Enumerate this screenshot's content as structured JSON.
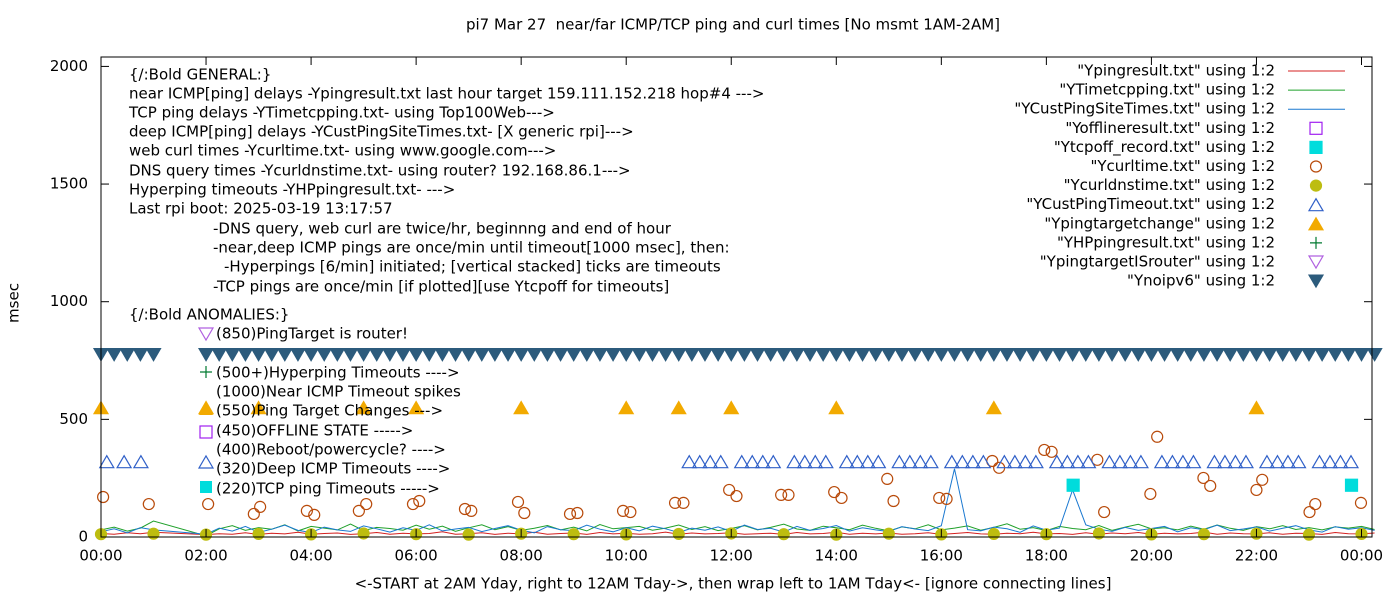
{
  "chart_data": {
    "type": "line",
    "title": "pi7 Mar 27  near/far ICMP/TCP ping and curl times [No msmt 1AM-2AM]",
    "x_label": "<-START at 2AM Yday, right to 12AM Tday->, then wrap left to 1AM Tday<- [ignore connecting lines]",
    "y_label": "msec",
    "xlim": [
      0,
      24.2
    ],
    "ylim": [
      0,
      2040
    ],
    "xticks": [
      {
        "value": 0,
        "label": "00:00"
      },
      {
        "value": 2,
        "label": "02:00"
      },
      {
        "value": 4,
        "label": "04:00"
      },
      {
        "value": 6,
        "label": "06:00"
      },
      {
        "value": 8,
        "label": "08:00"
      },
      {
        "value": 10,
        "label": "10:00"
      },
      {
        "value": 12,
        "label": "12:00"
      },
      {
        "value": 14,
        "label": "14:00"
      },
      {
        "value": 16,
        "label": "16:00"
      },
      {
        "value": 18,
        "label": "18:00"
      },
      {
        "value": 20,
        "label": "20:00"
      },
      {
        "value": 22,
        "label": "22:00"
      },
      {
        "value": 24,
        "label": "00:00"
      }
    ],
    "yticks": [
      0,
      500,
      1000,
      1500,
      2000
    ],
    "grid": false,
    "legend": "top-right",
    "notes": [
      "{/:Bold GENERAL:}",
      "near ICMP[ping] delays -Ypingresult.txt last hour target 159.111.152.218 hop#4 --->",
      "TCP ping delays -YTimetcpping.txt- using Top100Web--->",
      "deep ICMP[ping] delays -YCustPingSiteTimes.txt- [X generic rpi]--->",
      "web curl times -Ycurltime.txt- using www.google.com--->",
      "DNS query times -Ycurldnstime.txt- using router? 192.168.86.1--->",
      "Hyperping timeouts -YHPpingresult.txt- --->",
      "Last rpi boot: 2025-03-19 13:17:57",
      "-DNS query, web curl are twice/hr, beginnng and end of hour",
      "-near,deep ICMP pings are once/min until timeout[1000 msec], then:",
      "-Hyperpings [6/min] initiated; [vertical stacked] ticks are timeouts",
      "-TCP pings are once/min [if plotted][use Ytcpoff for timeouts]",
      "{/:Bold ANOMALIES:}",
      "(850)PingTarget is router!",
      "(500+)Hyperping Timeouts ---->",
      "(1000)Near ICMP Timeout spikes",
      "(550)Ping Target Changes --->",
      "(450)OFFLINE STATE ----->",
      "(400)Reboot/powercycle? ---->",
      "(320)Deep ICMP Timeouts ---->",
      "(220)TCP ping Timeouts ----->"
    ],
    "x": [
      0,
      0.25,
      0.5,
      0.75,
      1,
      2,
      2.25,
      2.5,
      2.75,
      3,
      3.25,
      3.5,
      3.75,
      4,
      4.25,
      4.5,
      4.75,
      5,
      5.25,
      5.5,
      5.75,
      6,
      6.25,
      6.5,
      6.75,
      7,
      7.25,
      7.5,
      7.75,
      8,
      8.25,
      8.5,
      8.75,
      9,
      9.25,
      9.5,
      9.75,
      10,
      10.25,
      10.5,
      10.75,
      11,
      11.25,
      11.5,
      11.75,
      12,
      12.25,
      12.5,
      12.75,
      13,
      13.25,
      13.5,
      13.75,
      14,
      14.25,
      14.5,
      14.75,
      15,
      15.25,
      15.5,
      15.75,
      16,
      16.25,
      16.5,
      16.75,
      17,
      17.25,
      17.5,
      17.75,
      18,
      18.25,
      18.5,
      18.75,
      19,
      19.25,
      19.5,
      19.75,
      20,
      20.25,
      20.5,
      20.75,
      21,
      21.25,
      21.5,
      21.75,
      22,
      22.25,
      22.5,
      22.75,
      23,
      23.25,
      23.5,
      23.75,
      24,
      24.25
    ],
    "series": [
      {
        "name": "\"Ypingresult.txt\" using 1:2",
        "color": "#d42020",
        "style": "line",
        "values": [
          15,
          12,
          18,
          14,
          20,
          10,
          14,
          12,
          18,
          11,
          16,
          13,
          20,
          12,
          15,
          17,
          11,
          14,
          19,
          12,
          16,
          13,
          15,
          22,
          12,
          14,
          18,
          11,
          16,
          13,
          20,
          12,
          15,
          17,
          11,
          19,
          13,
          16,
          12,
          14,
          21,
          12,
          17,
          13,
          15,
          18,
          12,
          14,
          16,
          11,
          19,
          13,
          15,
          20,
          12,
          16,
          13,
          17,
          12,
          14,
          18,
          11,
          15,
          19,
          13,
          12,
          16,
          14,
          20,
          13,
          15,
          11,
          18,
          12,
          17,
          14,
          19,
          12,
          16,
          13,
          15,
          21,
          12,
          17,
          14,
          13,
          18,
          12,
          16,
          15,
          11,
          19,
          14,
          13,
          17
        ]
      },
      {
        "name": "\"YTimetcpping.txt\" using 1:2",
        "color": "#1fa02a",
        "style": "line",
        "values": [
          30,
          42,
          25,
          38,
          68,
          5,
          35,
          48,
          28,
          40,
          33,
          52,
          26,
          45,
          38,
          30,
          55,
          27,
          41,
          36,
          29,
          50,
          33,
          46,
          24,
          39,
          52,
          31,
          44,
          28,
          37,
          49,
          30,
          42,
          26,
          53,
          35,
          40,
          45,
          29,
          38,
          51,
          32,
          44,
          27,
          36,
          48,
          30,
          41,
          55,
          34,
          28,
          46,
          39,
          31,
          50,
          37,
          26,
          43,
          35,
          52,
          30,
          38,
          47,
          29,
          41,
          56,
          33,
          40,
          27,
          45,
          36,
          31,
          49,
          28,
          42,
          54,
          35,
          39,
          30,
          46,
          33,
          51,
          37,
          28,
          44,
          35,
          48,
          32,
          40,
          30,
          43,
          38,
          45,
          32
        ]
      },
      {
        "name": "\"YCustPingSiteTimes.txt\" using 1:2",
        "color": "#1a78d0",
        "style": "line",
        "values": [
          22,
          35,
          18,
          40,
          30,
          12,
          38,
          25,
          45,
          20,
          33,
          50,
          28,
          19,
          42,
          30,
          24,
          47,
          35,
          21,
          39,
          28,
          52,
          26,
          34,
          41,
          23,
          36,
          48,
          29,
          18,
          44,
          31,
          27,
          50,
          33,
          22,
          40,
          26,
          46,
          35,
          19,
          38,
          29,
          43,
          24,
          51,
          32,
          37,
          21,
          45,
          28,
          36,
          49,
          25,
          39,
          30,
          23,
          44,
          34,
          27,
          48,
          290,
          31,
          26,
          42,
          35,
          20,
          47,
          29,
          38,
          200,
          52,
          33,
          24,
          41,
          28,
          36,
          45,
          22,
          39,
          31,
          50,
          27,
          34,
          43,
          25,
          37,
          48,
          30,
          21,
          44,
          33,
          39,
          28
        ]
      },
      {
        "name": "\"Yofflineresult.txt\" using 1:2",
        "color": "#a020f0",
        "style": "square-open",
        "x": [],
        "values": []
      },
      {
        "name": "\"Ytcpoff_record.txt\" using 1:2",
        "color": "#00dcdc",
        "style": "square",
        "x": [
          18.51,
          23.81
        ],
        "values": [
          220,
          220
        ]
      },
      {
        "name": "\"Ycurltime.txt\" using 1:2",
        "color": "#b84a0a",
        "style": "circle-open",
        "x": [
          0.04,
          0.91,
          2.04,
          2.91,
          3.03,
          3.92,
          4.06,
          4.91,
          5.05,
          5.94,
          6.06,
          6.93,
          7.05,
          7.94,
          8.06,
          8.93,
          9.07,
          9.94,
          10.08,
          10.93,
          11.09,
          11.96,
          12.1,
          12.95,
          13.09,
          13.96,
          14.1,
          14.97,
          15.09,
          15.96,
          16.1,
          16.97,
          17.1,
          17.96,
          18.1,
          18.97,
          19.1,
          19.98,
          20.11,
          20.99,
          21.12,
          22.0,
          22.11,
          23.01,
          23.12,
          23.99
        ],
        "values": [
          170,
          140,
          140,
          98,
          128,
          111,
          94,
          111,
          140,
          140,
          153,
          119,
          111,
          149,
          102,
          98,
          102,
          111,
          106,
          145,
          145,
          200,
          174,
          179,
          179,
          191,
          166,
          247,
          153,
          166,
          162,
          323,
          294,
          370,
          362,
          328,
          106,
          183,
          426,
          251,
          217,
          200,
          243,
          106,
          140,
          145
        ]
      },
      {
        "name": "\"Ycurldnstime.txt\" using 1:2",
        "color": "#bdbd10",
        "style": "circle",
        "x": [
          0,
          1,
          2,
          3,
          4,
          5,
          6,
          7,
          8,
          9,
          10,
          11,
          12,
          13,
          14,
          15,
          16,
          17,
          18,
          19,
          20,
          21,
          22,
          23,
          24
        ],
        "values": [
          12,
          14,
          10,
          13,
          11,
          15,
          12,
          10,
          14,
          12,
          11,
          13,
          15,
          12,
          10,
          14,
          11,
          13,
          12,
          15,
          11,
          12,
          14,
          10,
          13
        ]
      },
      {
        "name": "\"YCustPingTimeout.txt\" using 1:2",
        "color": "#3060c8",
        "style": "triangle-up-open",
        "x": [
          0.11,
          0.44,
          0.76,
          11.2,
          11.4,
          11.6,
          11.8,
          12.2,
          12.4,
          12.6,
          12.8,
          13.2,
          13.4,
          13.6,
          13.8,
          14.2,
          14.4,
          14.6,
          14.8,
          15.2,
          15.4,
          15.6,
          15.8,
          16.2,
          16.4,
          16.6,
          16.8,
          17.2,
          17.4,
          17.6,
          17.8,
          18.2,
          18.4,
          18.6,
          18.8,
          19.2,
          19.4,
          19.6,
          19.8,
          20.2,
          20.4,
          20.6,
          20.8,
          21.2,
          21.4,
          21.6,
          21.8,
          22.2,
          22.4,
          22.6,
          22.8,
          23.2,
          23.4,
          23.6,
          23.8
        ],
        "values": [
          320,
          320,
          320,
          320,
          320,
          320,
          320,
          320,
          320,
          320,
          320,
          320,
          320,
          320,
          320,
          320,
          320,
          320,
          320,
          320,
          320,
          320,
          320,
          320,
          320,
          320,
          320,
          320,
          320,
          320,
          320,
          320,
          320,
          320,
          320,
          320,
          320,
          320,
          320,
          320,
          320,
          320,
          320,
          320,
          320,
          320,
          320,
          320,
          320,
          320,
          320,
          320,
          320,
          320,
          320
        ]
      },
      {
        "name": "\"Ypingtargetchange\" using 1:2",
        "color": "#f2aa00",
        "style": "triangle-up",
        "x": [
          0,
          2,
          3,
          5,
          6,
          8,
          10,
          11,
          12,
          14,
          17,
          22
        ],
        "values": [
          550,
          550,
          550,
          550,
          550,
          550,
          550,
          550,
          550,
          550,
          550,
          550
        ]
      },
      {
        "name": "\"YHPpingresult.txt\" using 1:2",
        "color": "#007a30",
        "style": "plus",
        "x": [],
        "values": []
      },
      {
        "name": "\"YpingtargetISrouter\" using 1:2",
        "color": "#b060e0",
        "style": "triangle-down-open",
        "x": [],
        "values": []
      },
      {
        "name": "\"Ynoipv6\" using 1:2",
        "color": "#2c5b7c",
        "style": "triangle-down",
        "values": [
          775,
          775,
          775,
          775,
          775,
          775,
          775,
          775,
          775,
          775,
          775,
          775,
          775,
          775,
          775,
          775,
          775,
          775,
          775,
          775,
          775,
          775,
          775,
          775,
          775,
          775,
          775,
          775,
          775,
          775,
          775,
          775,
          775,
          775,
          775,
          775,
          775,
          775,
          775,
          775,
          775,
          775,
          775,
          775,
          775,
          775,
          775,
          775,
          775,
          775,
          775,
          775,
          775,
          775,
          775,
          775,
          775,
          775,
          775,
          775,
          775,
          775,
          775,
          775,
          775,
          775,
          775,
          775,
          775,
          775,
          775,
          775,
          775,
          775,
          775,
          775,
          775,
          775,
          775,
          775,
          775,
          775,
          775,
          775,
          775,
          775,
          775,
          775,
          775,
          775,
          775,
          775,
          775,
          775,
          775
        ]
      }
    ]
  }
}
